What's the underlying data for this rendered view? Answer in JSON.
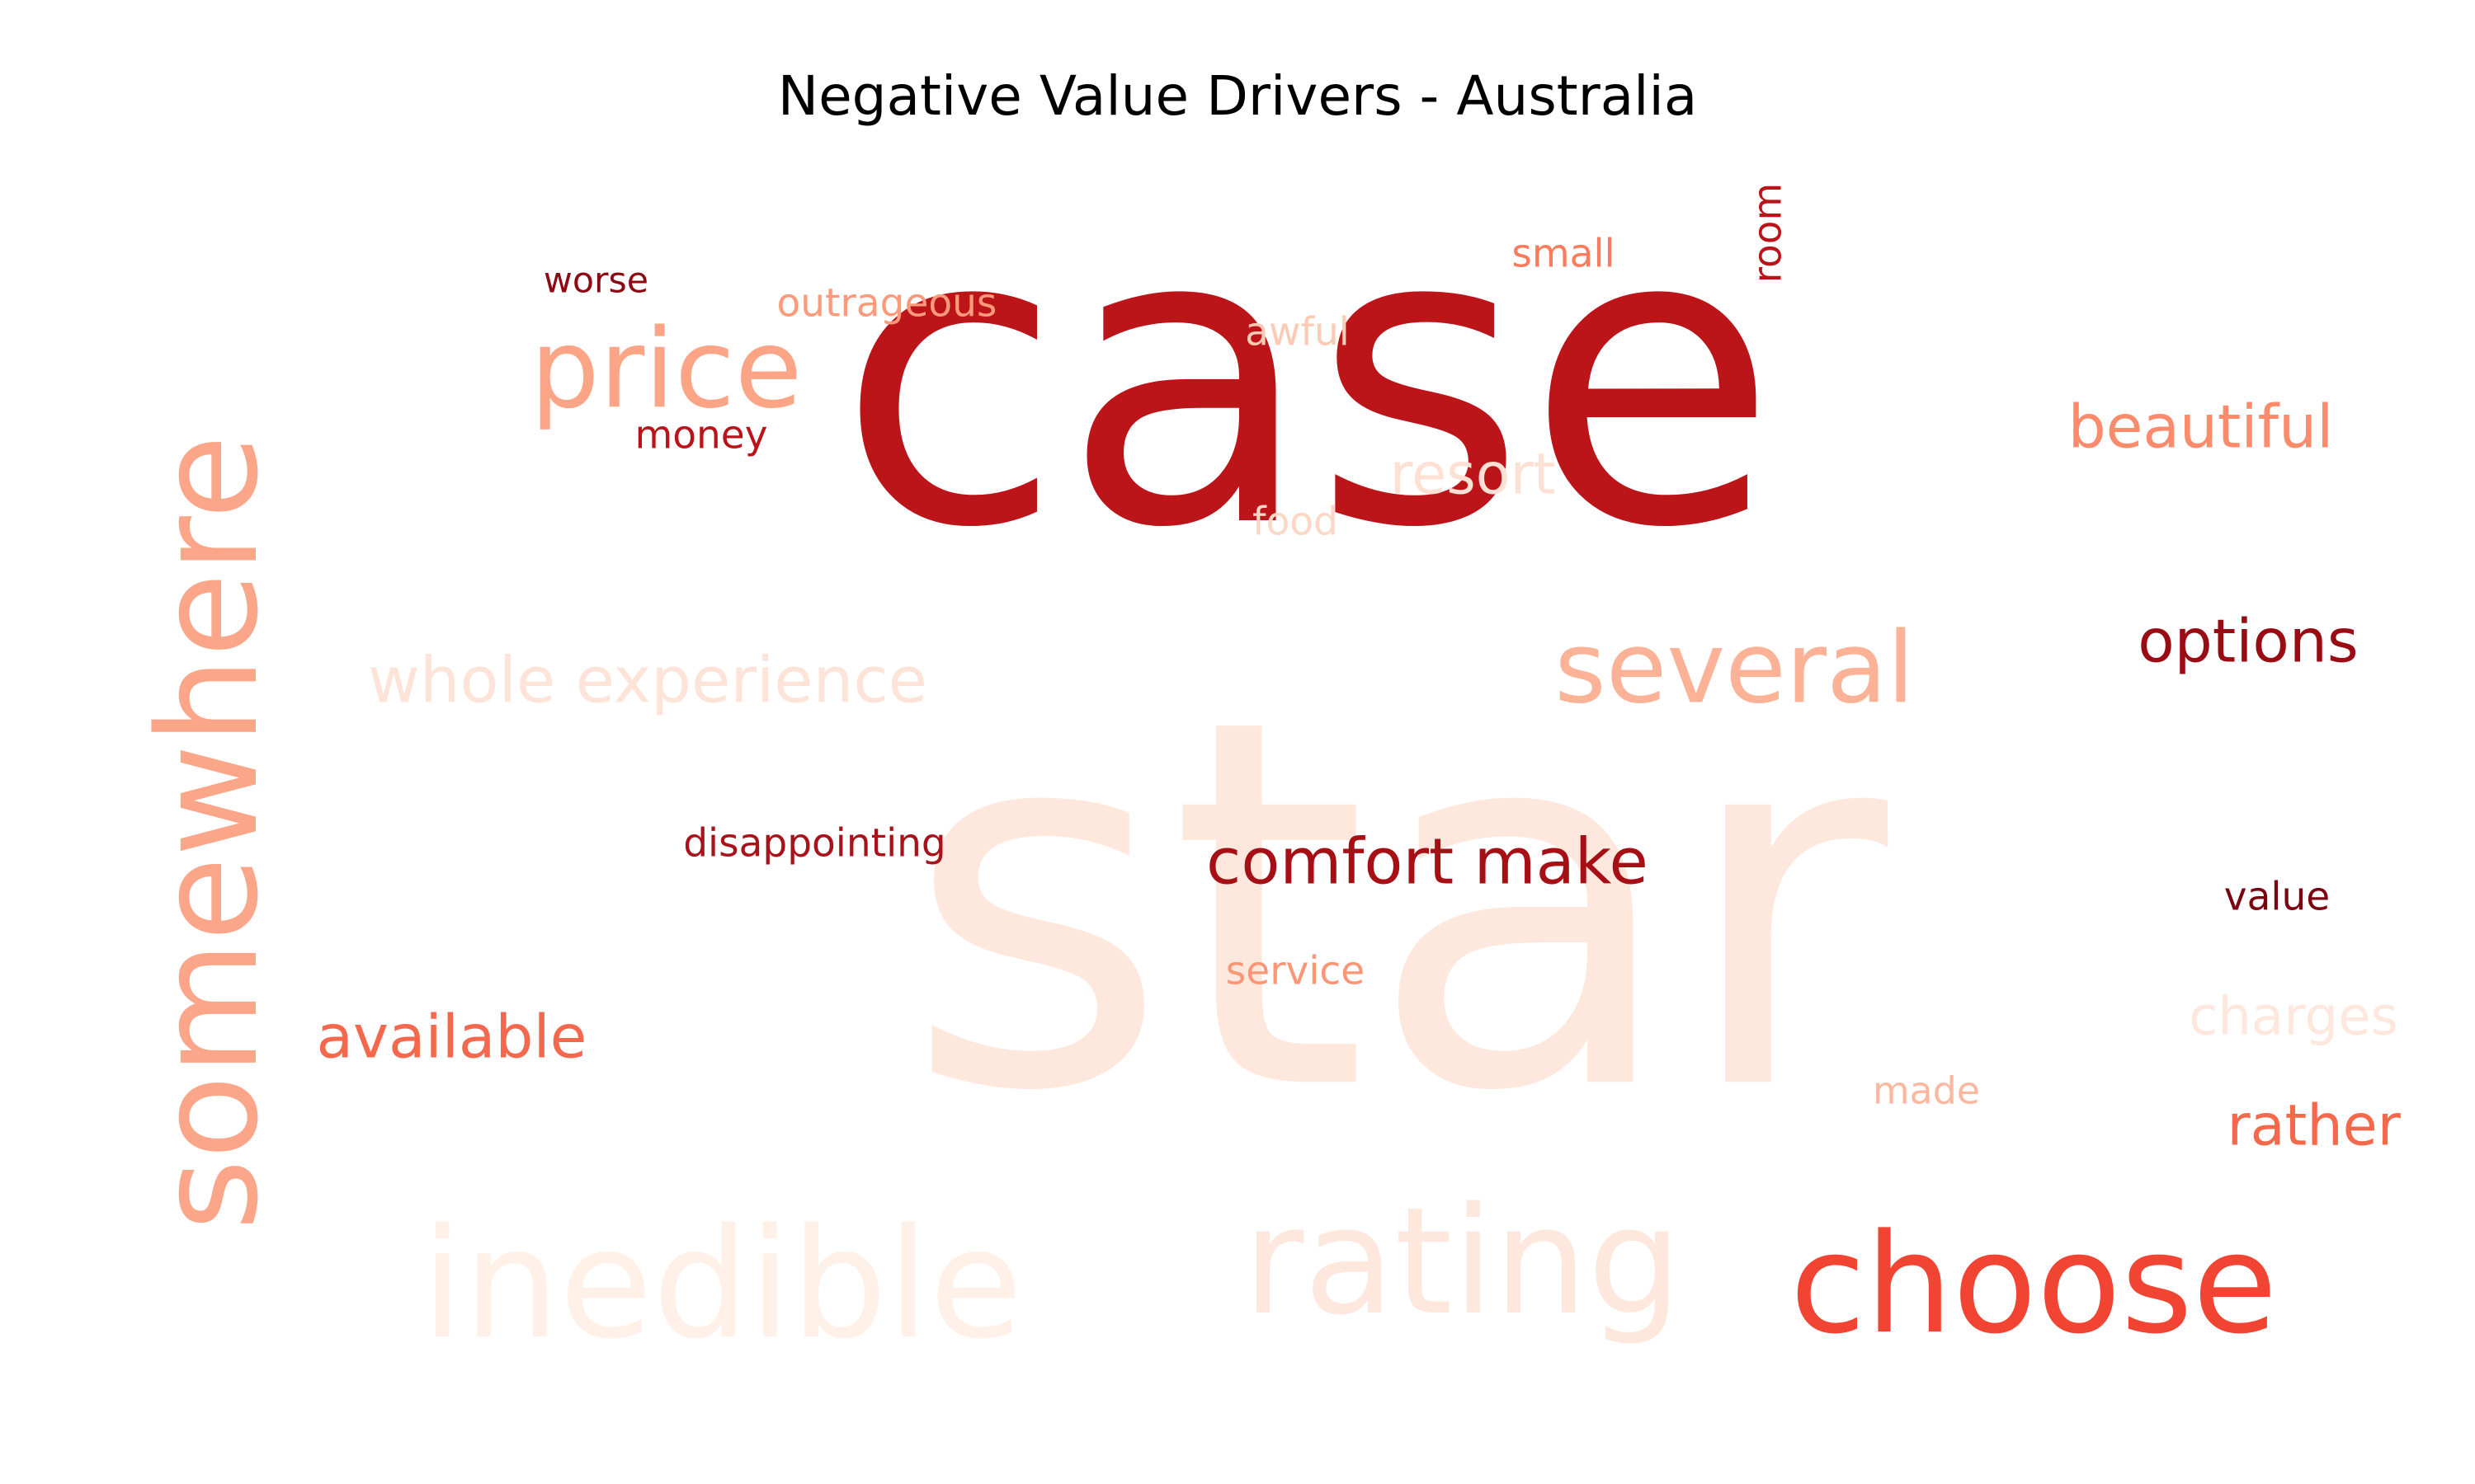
{
  "chart_data": {
    "type": "wordcloud",
    "title": "Negative Value Drivers - Australia",
    "colormap": "Reds",
    "words": [
      {
        "text": "case",
        "color": "#bb151a",
        "orientation": "horizontal"
      },
      {
        "text": "star",
        "color": "#fee7dc",
        "orientation": "horizontal"
      },
      {
        "text": "choose",
        "color": "#f14432",
        "orientation": "horizontal"
      },
      {
        "text": "somewhere",
        "color": "#fca689",
        "orientation": "vertical"
      },
      {
        "text": "inedible",
        "color": "#fff0e8",
        "orientation": "horizontal"
      },
      {
        "text": "rating",
        "color": "#fee8dd",
        "orientation": "horizontal"
      },
      {
        "text": "price",
        "color": "#fca486",
        "orientation": "horizontal"
      },
      {
        "text": "several",
        "color": "#fcb296",
        "orientation": "horizontal"
      },
      {
        "text": "whole experience",
        "color": "#fee4d8",
        "orientation": "horizontal"
      },
      {
        "text": "comfort make",
        "color": "#a50f15",
        "orientation": "horizontal"
      },
      {
        "text": "available",
        "color": "#f4694d",
        "orientation": "horizontal"
      },
      {
        "text": "beautiful",
        "color": "#fb8b6b",
        "orientation": "horizontal"
      },
      {
        "text": "options",
        "color": "#9a0c14",
        "orientation": "horizontal"
      },
      {
        "text": "resort",
        "color": "#fee1d4",
        "orientation": "horizontal"
      },
      {
        "text": "charges",
        "color": "#fee8de",
        "orientation": "horizontal"
      },
      {
        "text": "rather",
        "color": "#f4684c",
        "orientation": "horizontal"
      },
      {
        "text": "outrageous",
        "color": "#fc9a7b",
        "orientation": "horizontal"
      },
      {
        "text": "disappointing",
        "color": "#a8121a",
        "orientation": "horizontal"
      },
      {
        "text": "worse",
        "color": "#8e0a13",
        "orientation": "horizontal"
      },
      {
        "text": "small",
        "color": "#fb7c5c",
        "orientation": "horizontal"
      },
      {
        "text": "money",
        "color": "#b81419",
        "orientation": "horizontal"
      },
      {
        "text": "awful",
        "color": "#fdcab5",
        "orientation": "horizontal"
      },
      {
        "text": "food",
        "color": "#fdd7c6",
        "orientation": "horizontal"
      },
      {
        "text": "room",
        "color": "#b81419",
        "orientation": "vertical"
      },
      {
        "text": "value",
        "color": "#7a0510",
        "orientation": "horizontal"
      },
      {
        "text": "service",
        "color": "#fc9677",
        "orientation": "horizontal"
      },
      {
        "text": "made",
        "color": "#fcb89f",
        "orientation": "horizontal"
      }
    ]
  }
}
